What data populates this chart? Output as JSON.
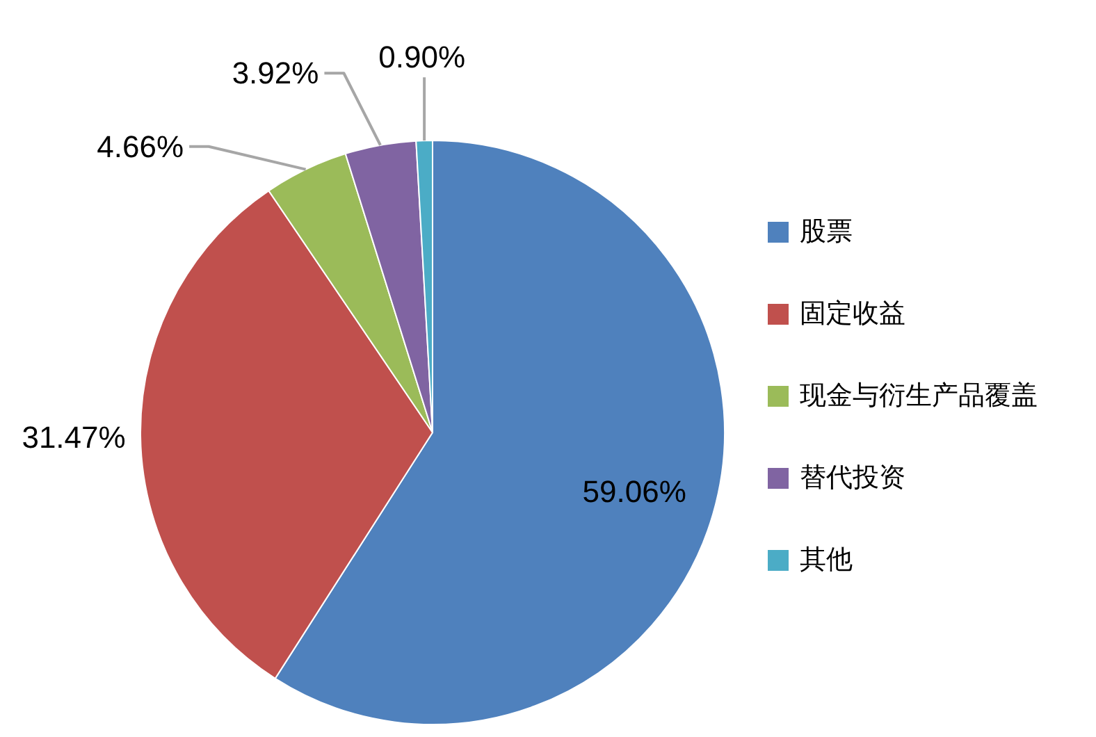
{
  "chart_data": {
    "type": "pie",
    "categories": [
      "股票",
      "固定收益",
      "现金与衍生产品覆盖",
      "替代投资",
      "其他"
    ],
    "values": [
      59.06,
      31.47,
      4.66,
      3.92,
      0.9
    ],
    "colors": [
      "#4f81bd",
      "#c0504d",
      "#9bbb59",
      "#8064a2",
      "#4bacc6"
    ],
    "value_labels": [
      "59.06%",
      "31.47%",
      "4.66%",
      "3.92%",
      "0.90%"
    ],
    "legend": "right"
  }
}
